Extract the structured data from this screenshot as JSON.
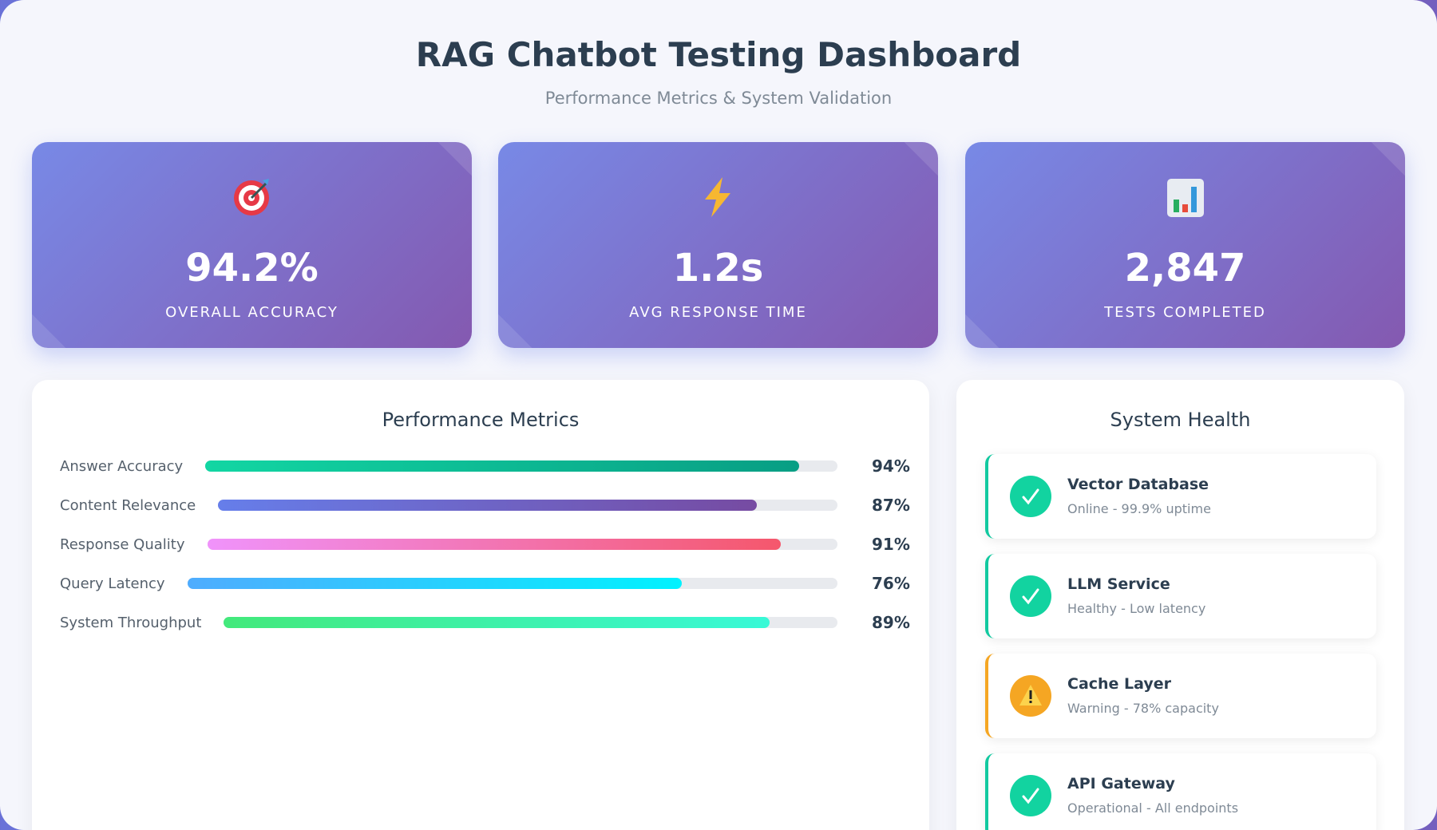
{
  "header": {
    "title": "RAG Chatbot Testing Dashboard",
    "subtitle": "Performance Metrics & System Validation"
  },
  "stats": [
    {
      "icon": "target",
      "value": "94.2%",
      "label": "OVERALL ACCURACY"
    },
    {
      "icon": "bolt",
      "value": "1.2s",
      "label": "AVG RESPONSE TIME"
    },
    {
      "icon": "chart",
      "value": "2,847",
      "label": "TESTS COMPLETED"
    }
  ],
  "performance": {
    "title": "Performance Metrics",
    "metrics": [
      {
        "name": "Answer Accuracy",
        "value": 94,
        "value_label": "94%",
        "colors": [
          "#12d6a3",
          "#089e84"
        ]
      },
      {
        "name": "Content Relevance",
        "value": 87,
        "value_label": "87%",
        "colors": [
          "#667eea",
          "#764ba2"
        ]
      },
      {
        "name": "Response Quality",
        "value": 91,
        "value_label": "91%",
        "colors": [
          "#f093fb",
          "#f5576c"
        ]
      },
      {
        "name": "Query Latency",
        "value": 76,
        "value_label": "76%",
        "colors": [
          "#4facfe",
          "#00f2fe"
        ]
      },
      {
        "name": "System Throughput",
        "value": 89,
        "value_label": "89%",
        "colors": [
          "#43e97b",
          "#38f9d7"
        ]
      }
    ]
  },
  "health": {
    "title": "System Health",
    "items": [
      {
        "name": "Vector Database",
        "status": "Online - 99.9% uptime",
        "state": "ok"
      },
      {
        "name": "LLM Service",
        "status": "Healthy - Low latency",
        "state": "ok"
      },
      {
        "name": "Cache Layer",
        "status": "Warning - 78% capacity",
        "state": "warning"
      },
      {
        "name": "API Gateway",
        "status": "Operational - All endpoints",
        "state": "ok"
      }
    ]
  }
}
